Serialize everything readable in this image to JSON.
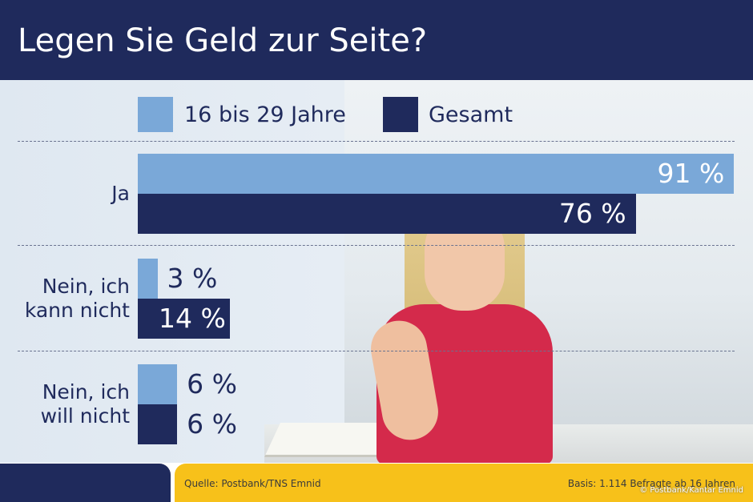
{
  "title": "Legen Sie Geld zur Seite?",
  "colors": {
    "header": "#1f2a5c",
    "light": "#7aa8d8",
    "dark": "#1f2a5c",
    "footer": "#f7c11a"
  },
  "legend": [
    {
      "name": "16 bis 29 Jahre",
      "color": "#7aa8d8"
    },
    {
      "name": "Gesamt",
      "color": "#1f2a5c"
    }
  ],
  "chart_data": {
    "type": "bar",
    "orientation": "horizontal",
    "title": "Legen Sie Geld zur Seite?",
    "categories": [
      "Ja",
      "Nein, ich\nkann nicht",
      "Nein, ich\nwill nicht"
    ],
    "series": [
      {
        "name": "16 bis 29 Jahre",
        "values": [
          91,
          3,
          6
        ],
        "labels": [
          "91 %",
          "3 %",
          "6 %"
        ]
      },
      {
        "name": "Gesamt",
        "values": [
          76,
          14,
          6
        ],
        "labels": [
          "76 %",
          "14 %",
          "6 %"
        ]
      }
    ],
    "xlim": [
      0,
      100
    ],
    "grid": false,
    "legend_position": "top"
  },
  "footer": {
    "source": "Quelle: Postbank/TNS Emnid",
    "basis": "Basis: 1.114 Befragte ab 16 Jahren",
    "copyright": "© Postbank/Kantar Emnid"
  }
}
